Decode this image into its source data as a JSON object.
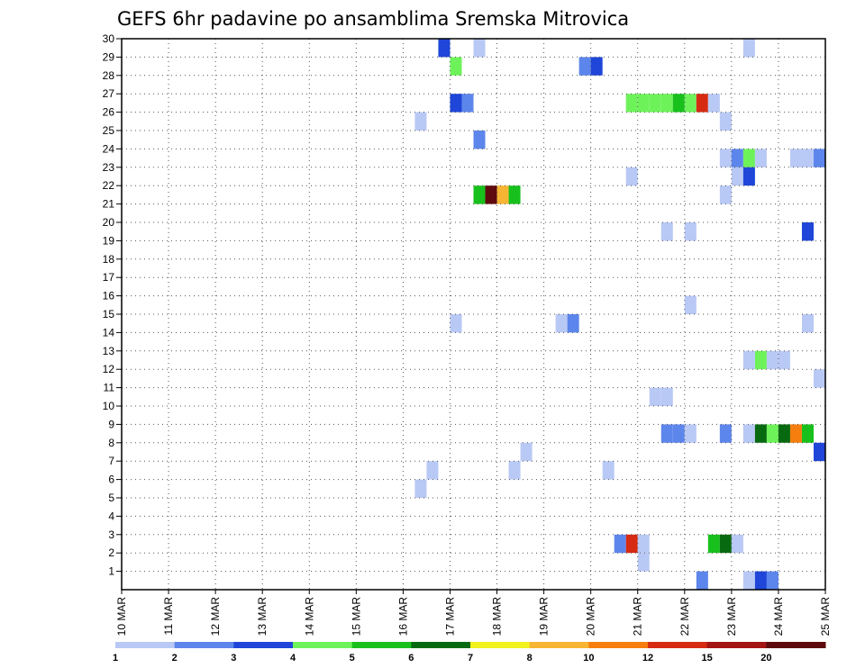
{
  "chart_data": {
    "type": "heatmap",
    "title": "GEFS 6hr padavine po ansamblima Sremska Mitrovica",
    "xlabel": "",
    "ylabel": "",
    "y_ticks": [
      "1",
      "2",
      "3",
      "4",
      "5",
      "6",
      "7",
      "8",
      "9",
      "10",
      "11",
      "12",
      "13",
      "14",
      "15",
      "16",
      "17",
      "18",
      "19",
      "20",
      "21",
      "22",
      "23",
      "24",
      "25",
      "26",
      "27",
      "28",
      "29",
      "30"
    ],
    "x_ticks": [
      "10 MAR",
      "11 MAR",
      "12 MAR",
      "13 MAR",
      "14 MAR",
      "15 MAR",
      "16 MAR",
      "17 MAR",
      "18 MAR",
      "19 MAR",
      "20 MAR",
      "21 MAR",
      "22 MAR",
      "23 MAR",
      "24 MAR",
      "25 MAR"
    ],
    "x_range_days": [
      0,
      15
    ],
    "y_range": [
      0,
      30
    ],
    "grid": true,
    "legend": {
      "thresholds": [
        "1",
        "2",
        "3",
        "4",
        "5",
        "6",
        "7",
        "8",
        "10",
        "12",
        "15",
        "20"
      ],
      "colors": [
        "#b9c9f5",
        "#5d86ec",
        "#1f46d9",
        "#6ef25a",
        "#18c01c",
        "#086a10",
        "#f2f21c",
        "#f7b533",
        "#f57e0f",
        "#d62b12",
        "#a41413",
        "#5e0a0e"
      ]
    },
    "cells": [
      {
        "t": 6.75,
        "m": 29,
        "c": 2
      },
      {
        "t": 7.5,
        "m": 29,
        "c": 0
      },
      {
        "t": 13.25,
        "m": 29,
        "c": 0
      },
      {
        "t": 7.0,
        "m": 28,
        "c": 3
      },
      {
        "t": 9.75,
        "m": 28,
        "c": 1
      },
      {
        "t": 10.0,
        "m": 28,
        "c": 2
      },
      {
        "t": 7.0,
        "m": 26,
        "c": 2
      },
      {
        "t": 7.25,
        "m": 26,
        "c": 1
      },
      {
        "t": 10.75,
        "m": 26,
        "c": 3
      },
      {
        "t": 11.0,
        "m": 26,
        "c": 3
      },
      {
        "t": 11.25,
        "m": 26,
        "c": 3
      },
      {
        "t": 11.5,
        "m": 26,
        "c": 3
      },
      {
        "t": 11.75,
        "m": 26,
        "c": 4
      },
      {
        "t": 12.0,
        "m": 26,
        "c": 3
      },
      {
        "t": 12.25,
        "m": 26,
        "c": 9
      },
      {
        "t": 12.5,
        "m": 26,
        "c": 0
      },
      {
        "t": 6.25,
        "m": 25,
        "c": 0
      },
      {
        "t": 12.75,
        "m": 25,
        "c": 0
      },
      {
        "t": 7.5,
        "m": 24,
        "c": 1
      },
      {
        "t": 12.75,
        "m": 23,
        "c": 0
      },
      {
        "t": 13.0,
        "m": 23,
        "c": 1
      },
      {
        "t": 13.25,
        "m": 23,
        "c": 3
      },
      {
        "t": 13.5,
        "m": 23,
        "c": 0
      },
      {
        "t": 14.25,
        "m": 23,
        "c": 0
      },
      {
        "t": 14.5,
        "m": 23,
        "c": 0
      },
      {
        "t": 14.75,
        "m": 23,
        "c": 1
      },
      {
        "t": 10.75,
        "m": 22,
        "c": 0
      },
      {
        "t": 13.0,
        "m": 22,
        "c": 0
      },
      {
        "t": 13.25,
        "m": 22,
        "c": 2
      },
      {
        "t": 7.5,
        "m": 21,
        "c": 4
      },
      {
        "t": 7.75,
        "m": 21,
        "c": 11
      },
      {
        "t": 8.0,
        "m": 21,
        "c": 7
      },
      {
        "t": 8.25,
        "m": 21,
        "c": 4
      },
      {
        "t": 12.75,
        "m": 21,
        "c": 0
      },
      {
        "t": 11.5,
        "m": 19,
        "c": 0
      },
      {
        "t": 12.0,
        "m": 19,
        "c": 0
      },
      {
        "t": 14.5,
        "m": 19,
        "c": 2
      },
      {
        "t": 12.0,
        "m": 15,
        "c": 0
      },
      {
        "t": 7.0,
        "m": 14,
        "c": 0
      },
      {
        "t": 9.25,
        "m": 14,
        "c": 0
      },
      {
        "t": 9.5,
        "m": 14,
        "c": 1
      },
      {
        "t": 14.5,
        "m": 14,
        "c": 0
      },
      {
        "t": 13.25,
        "m": 12,
        "c": 0
      },
      {
        "t": 13.5,
        "m": 12,
        "c": 3
      },
      {
        "t": 13.75,
        "m": 12,
        "c": 0
      },
      {
        "t": 14.0,
        "m": 12,
        "c": 0
      },
      {
        "t": 14.75,
        "m": 11,
        "c": 0
      },
      {
        "t": 11.25,
        "m": 10,
        "c": 0
      },
      {
        "t": 11.5,
        "m": 10,
        "c": 0
      },
      {
        "t": 11.5,
        "m": 8,
        "c": 1
      },
      {
        "t": 11.75,
        "m": 8,
        "c": 1
      },
      {
        "t": 12.0,
        "m": 8,
        "c": 0
      },
      {
        "t": 12.75,
        "m": 8,
        "c": 1
      },
      {
        "t": 13.25,
        "m": 8,
        "c": 0
      },
      {
        "t": 13.5,
        "m": 8,
        "c": 5
      },
      {
        "t": 13.75,
        "m": 8,
        "c": 3
      },
      {
        "t": 14.0,
        "m": 8,
        "c": 5
      },
      {
        "t": 14.25,
        "m": 8,
        "c": 8
      },
      {
        "t": 14.5,
        "m": 8,
        "c": 4
      },
      {
        "t": 8.5,
        "m": 7,
        "c": 0
      },
      {
        "t": 14.75,
        "m": 7,
        "c": 2
      },
      {
        "t": 6.5,
        "m": 6,
        "c": 0
      },
      {
        "t": 8.25,
        "m": 6,
        "c": 0
      },
      {
        "t": 10.25,
        "m": 6,
        "c": 0
      },
      {
        "t": 6.25,
        "m": 5,
        "c": 0
      },
      {
        "t": 10.5,
        "m": 2,
        "c": 1
      },
      {
        "t": 10.75,
        "m": 2,
        "c": 9
      },
      {
        "t": 11.0,
        "m": 2,
        "c": 0
      },
      {
        "t": 12.5,
        "m": 2,
        "c": 4
      },
      {
        "t": 12.75,
        "m": 2,
        "c": 5
      },
      {
        "t": 13.0,
        "m": 2,
        "c": 0
      },
      {
        "t": 11.0,
        "m": 1,
        "c": 0
      },
      {
        "t": 12.25,
        "m": 0,
        "c": 1
      },
      {
        "t": 13.25,
        "m": 0,
        "c": 0
      },
      {
        "t": 13.5,
        "m": 0,
        "c": 2
      },
      {
        "t": 13.75,
        "m": 0,
        "c": 1
      }
    ]
  }
}
